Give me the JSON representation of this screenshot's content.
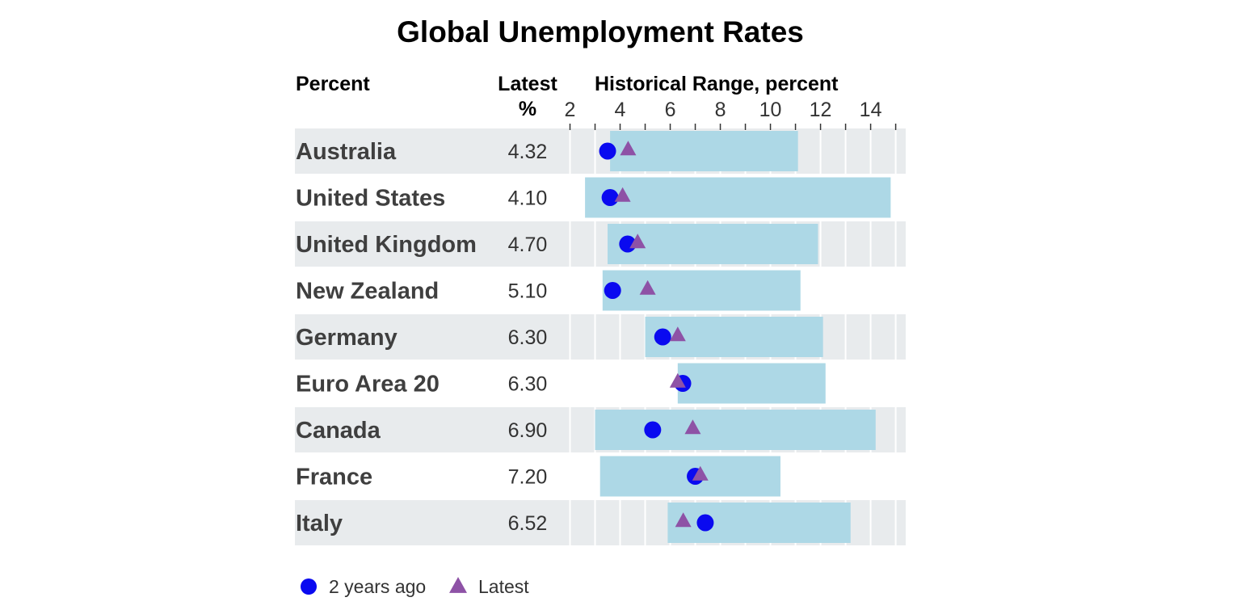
{
  "colors": {
    "stripe": "#e8ebed",
    "range": "#add8e6",
    "grid": "#ffffff",
    "dot": "#0a0af0",
    "triangle": "#8e52a6"
  },
  "chart_data": {
    "type": "dot-range",
    "title": "Global Unemployment Rates",
    "header_left": "Percent",
    "header_latest_line1": "Latest",
    "header_latest_line2": "%",
    "header_range": "Historical Range, percent",
    "xlim": [
      2,
      15.4
    ],
    "xticks": [
      2,
      4,
      6,
      8,
      10,
      12,
      14
    ],
    "grid": true,
    "legend": {
      "position": "bottom-left",
      "items": [
        {
          "label": "2 years ago",
          "marker": "circle"
        },
        {
          "label": "Latest",
          "marker": "triangle"
        }
      ]
    },
    "rows": [
      {
        "country": "Australia",
        "latest_label": "4.32",
        "range_min": 3.6,
        "range_max": 11.1,
        "two_years_ago": 3.5,
        "latest": 4.32
      },
      {
        "country": "United States",
        "latest_label": "4.10",
        "range_min": 2.6,
        "range_max": 14.8,
        "two_years_ago": 3.6,
        "latest": 4.1
      },
      {
        "country": "United Kingdom",
        "latest_label": "4.70",
        "range_min": 3.5,
        "range_max": 11.9,
        "two_years_ago": 4.3,
        "latest": 4.7
      },
      {
        "country": "New Zealand",
        "latest_label": "5.10",
        "range_min": 3.3,
        "range_max": 11.2,
        "two_years_ago": 3.7,
        "latest": 5.1
      },
      {
        "country": "Germany",
        "latest_label": "6.30",
        "range_min": 5.0,
        "range_max": 12.1,
        "two_years_ago": 5.7,
        "latest": 6.3
      },
      {
        "country": "Euro Area 20",
        "latest_label": "6.30",
        "range_min": 6.3,
        "range_max": 12.2,
        "two_years_ago": 6.5,
        "latest": 6.3
      },
      {
        "country": "Canada",
        "latest_label": "6.90",
        "range_min": 3.0,
        "range_max": 14.2,
        "two_years_ago": 5.3,
        "latest": 6.9
      },
      {
        "country": "France",
        "latest_label": "7.20",
        "range_min": 3.2,
        "range_max": 10.4,
        "two_years_ago": 7.0,
        "latest": 7.2
      },
      {
        "country": "Italy",
        "latest_label": "6.52",
        "range_min": 5.9,
        "range_max": 13.2,
        "two_years_ago": 7.4,
        "latest": 6.52
      }
    ]
  }
}
